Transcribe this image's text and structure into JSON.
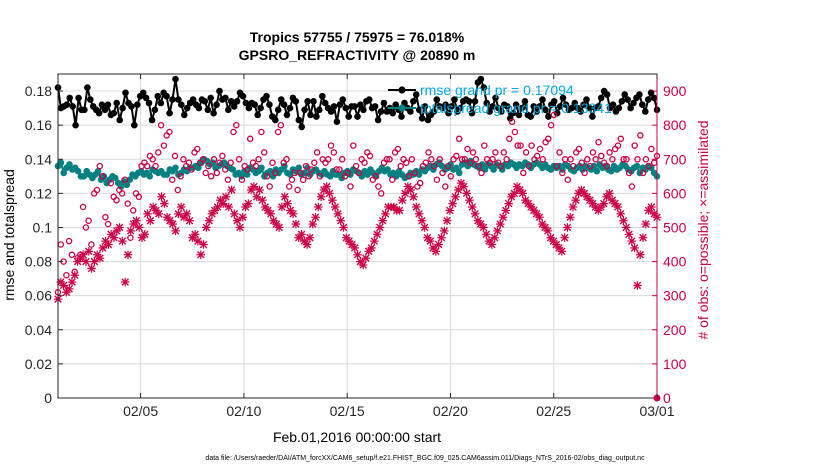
{
  "chart_data": {
    "type": "line",
    "title": "Tropics 57755 / 75975 = 76.018%",
    "subtitle": "GPSRO_REFRACTIVITY @ 20890 m",
    "xlabel": "Feb.01,2016 00:00:00 start",
    "ylabel": "rmse and totalspread",
    "ylabel_right": "# of obs: o=possible; ×=assimilated",
    "footer": "data file: /Users/raeder/DAI/ATM_forcXX/CAM6_setup/f.e21.FHIST_BGC.f09_025.CAM6assim.011/Diags_NTrS_2016-02/obs_diag_output.nc",
    "xlim": [
      1,
      30
    ],
    "ylim": [
      0,
      0.19
    ],
    "ylim_right": [
      0,
      950
    ],
    "x_tick_labels": [
      "02/05",
      "02/10",
      "02/15",
      "02/20",
      "02/25",
      "03/01"
    ],
    "y_tick_labels": [
      "0",
      "0.02",
      "0.04",
      "0.06",
      "0.08",
      "0.1",
      "0.12",
      "0.14",
      "0.16",
      "0.18"
    ],
    "y_right_tick_labels": [
      "0",
      "100",
      "200",
      "300",
      "400",
      "500",
      "600",
      "700",
      "800",
      "900"
    ],
    "grid": true,
    "legend_position": "top-right",
    "legend": [
      "rmse grand pr = 0.17094",
      "totalspread grand pr = 0.13341"
    ],
    "colors": {
      "rmse": "#000000",
      "totalspread": "#008080",
      "obs": "#cc0044",
      "legend_text": "#00aadd"
    },
    "series": [
      {
        "name": "rmse",
        "axis": "left",
        "style": "line-dot",
        "values": [
          0.182,
          0.17,
          0.171,
          0.172,
          0.176,
          0.171,
          0.16,
          0.176,
          0.169,
          0.169,
          0.182,
          0.175,
          0.171,
          0.169,
          0.167,
          0.172,
          0.169,
          0.172,
          0.166,
          0.167,
          0.173,
          0.163,
          0.17,
          0.179,
          0.173,
          0.171,
          0.16,
          0.172,
          0.177,
          0.179,
          0.176,
          0.173,
          0.163,
          0.169,
          0.177,
          0.173,
          0.179,
          0.177,
          0.167,
          0.175,
          0.187,
          0.175,
          0.172,
          0.166,
          0.17,
          0.173,
          0.175,
          0.172,
          0.17,
          0.175,
          0.174,
          0.169,
          0.176,
          0.167,
          0.172,
          0.18,
          0.175,
          0.176,
          0.169,
          0.174,
          0.171,
          0.174,
          0.179,
          0.177,
          0.173,
          0.17,
          0.173,
          0.172,
          0.166,
          0.17,
          0.175,
          0.177,
          0.172,
          0.165,
          0.163,
          0.169,
          0.175,
          0.172,
          0.166,
          0.17,
          0.176,
          0.174,
          0.163,
          0.159,
          0.169,
          0.174,
          0.166,
          0.174,
          0.165,
          0.169,
          0.177,
          0.173,
          0.17,
          0.168,
          0.171,
          0.162,
          0.172,
          0.175,
          0.17,
          0.165,
          0.171,
          0.171,
          0.165,
          0.172,
          0.169,
          0.174,
          0.175,
          0.17,
          0.171,
          0.163,
          0.168,
          0.173,
          0.168,
          0.17,
          0.167,
          0.172,
          0.169,
          0.165,
          0.173,
          0.17,
          0.168,
          0.174,
          0.178,
          0.169,
          0.164,
          0.171,
          0.163,
          0.166,
          0.168,
          0.175,
          0.171,
          0.17,
          0.172,
          0.167,
          0.171,
          0.175,
          0.168,
          0.17,
          0.174,
          0.175,
          0.174,
          0.167,
          0.174,
          0.185,
          0.187,
          0.182,
          0.173,
          0.168,
          0.171,
          0.176,
          0.17,
          0.168,
          0.172,
          0.171,
          0.164,
          0.167,
          0.172,
          0.166,
          0.17,
          0.174,
          0.166,
          0.165,
          0.171,
          0.168,
          0.171,
          0.175,
          0.169,
          0.165,
          0.172,
          0.174,
          0.167,
          0.171,
          0.176,
          0.172,
          0.169,
          0.17,
          0.173,
          0.17,
          0.168,
          0.172,
          0.175,
          0.17,
          0.165,
          0.17,
          0.171,
          0.176,
          0.18,
          0.178,
          0.17,
          0.172,
          0.168,
          0.17,
          0.174,
          0.178,
          0.175,
          0.17,
          0.173,
          0.176,
          0.178,
          0.172,
          0.168,
          0.175,
          0.179,
          0.176,
          0.169
        ]
      },
      {
        "name": "totalspread",
        "axis": "left",
        "style": "line-dot",
        "values": [
          0.136,
          0.138,
          0.132,
          0.135,
          0.137,
          0.134,
          0.135,
          0.133,
          0.13,
          0.13,
          0.133,
          0.131,
          0.129,
          0.131,
          0.133,
          0.128,
          0.13,
          0.126,
          0.128,
          0.13,
          0.129,
          0.126,
          0.124,
          0.127,
          0.125,
          0.128,
          0.131,
          0.13,
          0.132,
          0.133,
          0.131,
          0.132,
          0.13,
          0.134,
          0.133,
          0.132,
          0.133,
          0.131,
          0.131,
          0.134,
          0.133,
          0.135,
          0.131,
          0.132,
          0.134,
          0.133,
          0.135,
          0.135,
          0.136,
          0.135,
          0.138,
          0.14,
          0.139,
          0.137,
          0.138,
          0.135,
          0.136,
          0.137,
          0.138,
          0.136,
          0.135,
          0.134,
          0.131,
          0.132,
          0.13,
          0.133,
          0.131,
          0.135,
          0.134,
          0.132,
          0.133,
          0.135,
          0.13,
          0.132,
          0.133,
          0.13,
          0.134,
          0.132,
          0.134,
          0.136,
          0.132,
          0.131,
          0.134,
          0.133,
          0.135,
          0.131,
          0.132,
          0.135,
          0.131,
          0.133,
          0.134,
          0.132,
          0.131,
          0.133,
          0.131,
          0.13,
          0.133,
          0.131,
          0.131,
          0.129,
          0.132,
          0.133,
          0.131,
          0.134,
          0.133,
          0.132,
          0.13,
          0.133,
          0.131,
          0.134,
          0.132,
          0.13,
          0.133,
          0.135,
          0.133,
          0.134,
          0.131,
          0.132,
          0.13,
          0.133,
          0.131,
          0.129,
          0.13,
          0.132,
          0.131,
          0.133,
          0.131,
          0.134,
          0.133,
          0.135,
          0.136,
          0.134,
          0.137,
          0.138,
          0.136,
          0.134,
          0.135,
          0.137,
          0.134,
          0.135,
          0.132,
          0.137,
          0.138,
          0.136,
          0.139,
          0.137,
          0.136,
          0.135,
          0.137,
          0.134,
          0.137,
          0.136,
          0.134,
          0.137,
          0.136,
          0.134,
          0.137,
          0.136,
          0.138,
          0.137,
          0.135,
          0.137,
          0.136,
          0.138,
          0.137,
          0.135,
          0.137,
          0.138,
          0.137,
          0.135,
          0.137,
          0.135,
          0.134,
          0.136,
          0.135,
          0.136,
          0.134,
          0.137,
          0.136,
          0.134,
          0.133,
          0.135,
          0.136,
          0.134,
          0.136,
          0.135,
          0.134,
          0.136,
          0.133,
          0.137,
          0.135,
          0.136,
          0.134,
          0.133,
          0.136,
          0.134,
          0.135,
          0.137,
          0.136,
          0.134,
          0.133,
          0.135,
          0.136,
          0.132,
          0.135,
          0.134,
          0.136,
          0.135,
          0.132,
          0.13
        ]
      },
      {
        "name": "possible",
        "axis": "right",
        "style": "marker-o",
        "values": [
          310,
          450,
          400,
          360,
          460,
          420,
          370,
          410,
          420,
          560,
          500,
          520,
          450,
          600,
          610,
          680,
          650,
          530,
          510,
          630,
          590,
          580,
          610,
          600,
          640,
          570,
          470,
          550,
          600,
          590,
          680,
          690,
          680,
          710,
          700,
          680,
          720,
          800,
          740,
          770,
          780,
          640,
          710,
          610,
          650,
          700,
          680,
          690,
          670,
          720,
          730,
          690,
          700,
          660,
          680,
          650,
          700,
          660,
          690,
          710,
          670,
          640,
          690,
          780,
          800,
          700,
          640,
          680,
          670,
          760,
          690,
          680,
          700,
          780,
          720,
          650,
          620,
          690,
          660,
          780,
          800,
          690,
          700,
          620,
          640,
          660,
          610,
          660,
          640,
          680,
          650,
          670,
          690,
          720,
          650,
          700,
          690,
          700,
          740,
          720,
          670,
          670,
          700,
          650,
          660,
          620,
          740,
          680,
          660,
          700,
          690,
          720,
          710,
          640,
          650,
          620,
          600,
          690,
          700,
          700,
          640,
          720,
          730,
          680,
          700,
          690,
          650,
          700,
          660,
          620,
          630,
          680,
          690,
          720,
          700,
          680,
          640,
          700,
          660,
          620,
          680,
          650,
          700,
          710,
          760,
          700,
          700,
          730,
          690,
          720,
          700,
          680,
          660,
          740,
          700,
          690,
          700,
          720,
          690,
          680,
          720,
          700,
          760,
          810,
          780,
          740,
          740,
          660,
          720,
          680,
          740,
          700,
          710,
          730,
          700,
          750,
          760,
          800,
          830,
          680,
          720,
          660,
          700,
          640,
          700,
          680,
          720,
          730,
          690,
          660,
          700,
          680,
          720,
          700,
          750,
          710,
          690,
          680,
          720,
          700,
          730,
          740,
          760,
          700,
          700,
          660,
          620,
          740,
          700,
          770,
          660,
          700,
          680,
          730,
          690,
          710
        ]
      },
      {
        "name": "assimilated",
        "axis": "right",
        "style": "marker-x",
        "values": [
          290,
          340,
          330,
          310,
          320,
          340,
          360,
          400,
          410,
          420,
          400,
          430,
          380,
          400,
          420,
          410,
          440,
          460,
          450,
          480,
          470,
          490,
          500,
          460,
          340,
          420,
          490,
          510,
          520,
          500,
          470,
          480,
          540,
          520,
          560,
          550,
          540,
          590,
          570,
          530,
          520,
          510,
          490,
          540,
          560,
          530,
          540,
          520,
          470,
          480,
          460,
          420,
          450,
          500,
          520,
          540,
          550,
          560,
          580,
          570,
          590,
          560,
          610,
          540,
          520,
          500,
          530,
          560,
          570,
          610,
          620,
          590,
          610,
          580,
          560,
          550,
          540,
          520,
          510,
          500,
          560,
          590,
          570,
          550,
          540,
          510,
          470,
          480,
          460,
          450,
          470,
          510,
          530,
          560,
          590,
          610,
          620,
          600,
          580,
          560,
          540,
          520,
          500,
          470,
          460,
          450,
          440,
          420,
          400,
          390,
          410,
          430,
          440,
          460,
          480,
          500,
          520,
          540,
          560,
          560,
          560,
          550,
          550,
          580,
          600,
          620,
          610,
          590,
          560,
          540,
          520,
          500,
          470,
          460,
          440,
          430,
          450,
          470,
          490,
          520,
          550,
          570,
          590,
          610,
          630,
          620,
          600,
          580,
          560,
          540,
          520,
          510,
          500,
          480,
          460,
          450,
          470,
          490,
          510,
          530,
          550,
          570,
          590,
          600,
          620,
          610,
          600,
          580,
          570,
          560,
          550,
          540,
          530,
          510,
          500,
          490,
          470,
          460,
          450,
          440,
          430,
          470,
          500,
          530,
          560,
          580,
          600,
          610,
          600,
          590,
          580,
          570,
          560,
          550,
          560,
          570,
          590,
          600,
          580,
          570,
          560,
          540,
          520,
          500,
          480,
          460,
          440,
          330,
          420,
          470,
          510,
          550,
          560,
          540,
          530
        ]
      }
    ]
  }
}
